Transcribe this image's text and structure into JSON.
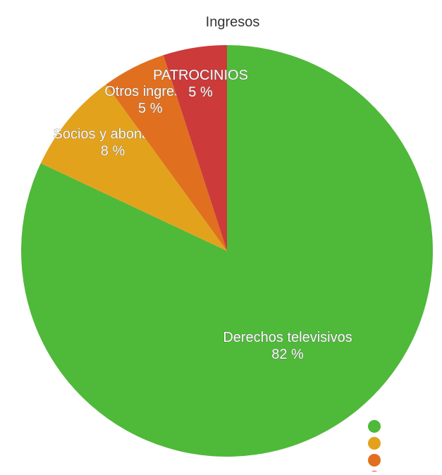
{
  "chart_data": {
    "type": "pie",
    "title": "Ingresos",
    "categories": [
      "Derechos televisivos",
      "Socios y abonados",
      "Otros ingresos",
      "PATROCINIOS"
    ],
    "values": [
      82,
      8,
      5,
      5
    ],
    "value_labels": [
      "82 %",
      "8 %",
      "5 %",
      "5 %"
    ],
    "colors": [
      "#4fb93a",
      "#e3a21c",
      "#e07020",
      "#cc3a3a"
    ]
  }
}
